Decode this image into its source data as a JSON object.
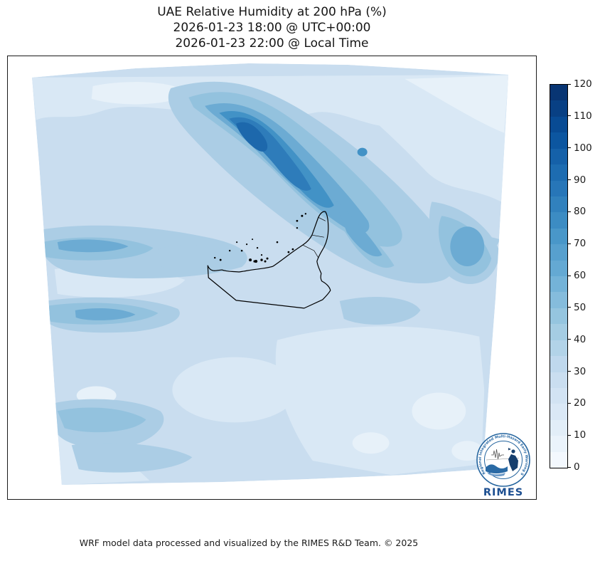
{
  "title": {
    "line1": "UAE Relative Humidity at 200 hPa (%)",
    "line2": "2026-01-23 18:00 @ UTC+00:00",
    "line3": "2026-01-23 22:00 @ Local Time"
  },
  "footer": "WRF model data processed and visualized by the RIMES R&D Team. © 2025",
  "logo": {
    "ring_text": "Regional Integrated Multi-Hazard Early Warning System",
    "wordmark": "RIMES",
    "brand_color": "#1d4f91"
  },
  "colorbar": {
    "ticks": [
      120,
      110,
      100,
      90,
      80,
      70,
      60,
      50,
      40,
      30,
      20,
      10,
      0
    ],
    "min": 0,
    "max": 120,
    "band_width": 5,
    "segment_colors_top_to_bottom": [
      "#083573",
      "#084084",
      "#084b94",
      "#0c56a0",
      "#1561a9",
      "#1d6cb1",
      "#2776b8",
      "#3181bd",
      "#3c8cc3",
      "#4997c9",
      "#57a0ce",
      "#64a9d3",
      "#74b3d8",
      "#85bcdc",
      "#95c5df",
      "#a5cde3",
      "#b2d3e8",
      "#bfd8ed",
      "#cadef0",
      "#d2e3f3",
      "#dae8f6",
      "#e2eef8",
      "#eaf3fb",
      "#f3f8fe"
    ]
  },
  "map": {
    "outline_region": "United Arab Emirates boundary with coastal islands",
    "palette": {
      "pale_10": "#e7f1f9",
      "pale_20": "#d9e8f5",
      "base_30": "#c9ddef",
      "mid_45": "#abcde5",
      "mid_50": "#93c2de",
      "mid_60": "#6cabd3",
      "dark_70": "#4292c6",
      "dark_78": "#2e7cba",
      "dark_85": "#1d68ac",
      "outline": "#000000"
    }
  },
  "chart_data": {
    "type": "heatmap",
    "title": "UAE Relative Humidity at 200 hPa (%)",
    "variable": "Relative Humidity",
    "pressure_level_hPa": 200,
    "units": "%",
    "valid_time_utc": "2026-01-23 18:00 @ UTC+00:00",
    "valid_time_local": "2026-01-23 22:00 @ Local Time",
    "domain": "UAE / southern Arabian Gulf WRF model domain (curvilinear quadrilateral boundary)",
    "colormap": "Blues, discrete filled contours every 5%",
    "range": [
      0,
      120
    ],
    "colorbar_ticks": [
      0,
      10,
      20,
      30,
      40,
      50,
      60,
      70,
      80,
      90,
      100,
      110,
      120
    ],
    "legend_position": "right vertical colorbar",
    "approx_field_summary": [
      {
        "value_band": "70-85%",
        "location": "dark NW-SE oriented plume and streaks in upper-center of domain, north of the UAE"
      },
      {
        "value_band": "45-60%",
        "location": "horizontal bands along the west (left) edge and central diagonal band toward the east"
      },
      {
        "value_band": "25-40%",
        "location": "background over most of the domain including the UAE landmass"
      },
      {
        "value_band": "5-25%",
        "location": "top-right corner wedge, top strip, lower-right quadrant and scattered pale spots"
      }
    ],
    "overlay": "UAE administrative boundary, coastline and island dots drawn in black; RIMES logo at bottom-right"
  }
}
